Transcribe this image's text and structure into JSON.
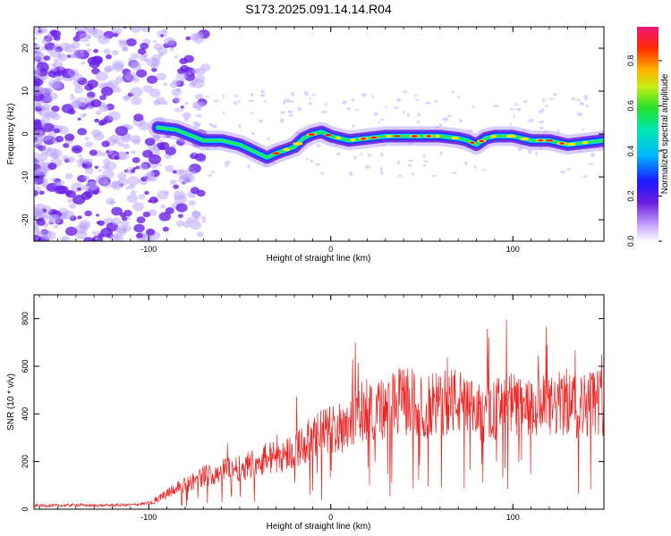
{
  "title": "S173.2025.091.14.14.R04",
  "colors": {
    "spectrogram_low": "#b9a2ff",
    "spectrogram_mid": "#6a22e6",
    "trace_blue": "#1f3dff",
    "trace_cyan": "#00d8e8",
    "trace_green": "#2fe83a",
    "trace_yellow": "#f0e60a",
    "trace_red": "#ee1111",
    "snr_line": "#ee2222"
  },
  "colorbar": {
    "label": "Normalized spectral amplitude",
    "ticks": [
      "0.0",
      "0.2",
      "0.4",
      "0.6",
      "0.8"
    ],
    "range": [
      0,
      0.95
    ]
  },
  "chart_data": [
    {
      "type": "heatmap",
      "name": "spectrogram",
      "xlabel": "Height of straight line (km)",
      "ylabel": "Frequency (Hz)",
      "xlim": [
        -163,
        150
      ],
      "ylim": [
        -25,
        25
      ],
      "xticks": [
        -100,
        0,
        100
      ],
      "yticks": [
        20,
        10,
        0,
        -10,
        -20
      ],
      "ridge": {
        "x": [
          -95,
          -85,
          -70,
          -60,
          -50,
          -40,
          -35,
          -30,
          -20,
          -15,
          -10,
          -5,
          0,
          5,
          10,
          20,
          30,
          40,
          50,
          60,
          70,
          75,
          80,
          85,
          90,
          95,
          100,
          110,
          120,
          130,
          140,
          150
        ],
        "y": [
          1.5,
          1.0,
          -1.5,
          -1.5,
          -2.5,
          -4.5,
          -5.5,
          -4.5,
          -3.0,
          -1.0,
          0.0,
          0.5,
          -0.5,
          -1.0,
          -1.5,
          -1.0,
          -0.5,
          -0.5,
          -0.5,
          -0.5,
          -1.0,
          -1.5,
          -2.5,
          -1.0,
          -0.5,
          -0.5,
          -0.5,
          -1.5,
          -1.5,
          -2.5,
          -2.0,
          -1.5
        ]
      }
    },
    {
      "type": "line",
      "name": "snr",
      "xlabel": "Height of straight line (km)",
      "ylabel": "SNR (10 * v/v)",
      "xlim": [
        -163,
        150
      ],
      "ylim": [
        0,
        900
      ],
      "xticks": [
        -100,
        0,
        100
      ],
      "yticks": [
        0,
        200,
        400,
        600,
        800
      ],
      "x": [
        -163,
        -150,
        -140,
        -130,
        -120,
        -110,
        -100,
        -95,
        -90,
        -85,
        -80,
        -75,
        -70,
        -65,
        -60,
        -55,
        -50,
        -45,
        -40,
        -35,
        -30,
        -25,
        -20,
        -15,
        -10,
        -5,
        0,
        5,
        10,
        15,
        20,
        25,
        30,
        35,
        40,
        45,
        50,
        55,
        60,
        65,
        70,
        75,
        80,
        85,
        90,
        95,
        100,
        105,
        110,
        115,
        120,
        125,
        130,
        135,
        140,
        145,
        150
      ],
      "y": [
        15,
        15,
        18,
        15,
        17,
        18,
        25,
        40,
        70,
        90,
        100,
        120,
        140,
        150,
        160,
        180,
        170,
        190,
        200,
        215,
        220,
        230,
        250,
        270,
        300,
        320,
        340,
        330,
        380,
        400,
        420,
        430,
        410,
        440,
        460,
        450,
        420,
        430,
        440,
        460,
        450,
        420,
        400,
        410,
        420,
        430,
        440,
        420,
        410,
        430,
        420,
        440,
        450,
        430,
        440,
        460,
        450
      ]
    }
  ]
}
